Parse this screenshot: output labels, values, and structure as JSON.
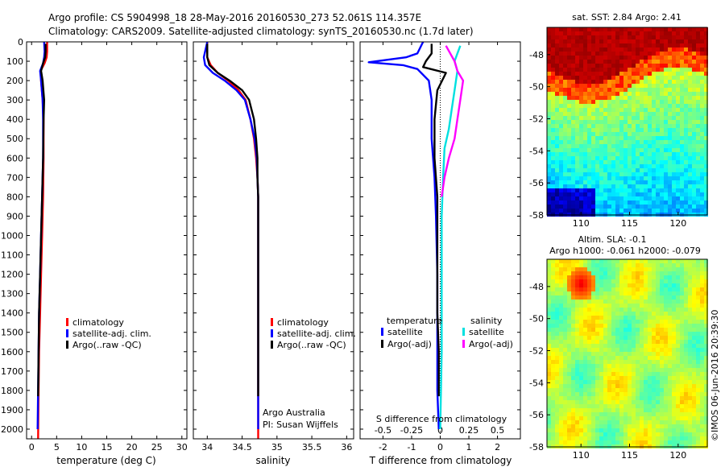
{
  "header": {
    "line1": "Argo profile: CS 5904998_18 28-May-2016 20160530_273 52.061S 114.357E",
    "line2": "Climatology: CARS2009. Satellite-adjusted climatology: synTS_20160530.nc (1.7d later)"
  },
  "credit": "©IMOS 06-Jun-2016 20:39:30",
  "chart_data": [
    {
      "type": "line",
      "id": "temperature",
      "xlabel": "temperature (deg C)",
      "xlim": [
        -1,
        31
      ],
      "xticks": [
        "0",
        "5",
        "10",
        "15",
        "20",
        "25",
        "30"
      ],
      "xtick_values": [
        0,
        5,
        10,
        15,
        20,
        25,
        30
      ],
      "ylim": [
        0,
        2050
      ],
      "yticks": [
        "0",
        "100",
        "200",
        "300",
        "400",
        "500",
        "600",
        "700",
        "800",
        "900",
        "1000",
        "1100",
        "1200",
        "1300",
        "1400",
        "1500",
        "1600",
        "1700",
        "1800",
        "1900",
        "2000"
      ],
      "y_inverted": true,
      "legend": [
        "climatology",
        "satellite-adj. clim.",
        "Argo(..raw -QC)"
      ],
      "legend_colors": [
        "#ff0000",
        "#0000ff",
        "#000000"
      ],
      "series": [
        {
          "name": "climatology",
          "color": "#ff0000",
          "x": [
            3.1,
            3.1,
            3.0,
            2.6,
            1.8,
            1.9,
            2.2,
            2.4,
            2.4,
            2.3,
            2.1,
            1.9,
            1.7,
            1.5,
            1.4,
            1.3
          ],
          "y": [
            0,
            50,
            80,
            110,
            150,
            200,
            300,
            400,
            600,
            800,
            1000,
            1200,
            1400,
            1600,
            1800,
            2050
          ]
        },
        {
          "name": "satellite-adj. clim.",
          "color": "#0000ff",
          "x": [
            2.5,
            2.6,
            2.5,
            2.3,
            1.7,
            1.9,
            2.2,
            2.3,
            2.3,
            2.1,
            1.9,
            1.7,
            1.5,
            1.4,
            1.3,
            1.2
          ],
          "y": [
            0,
            50,
            80,
            110,
            150,
            200,
            300,
            400,
            600,
            800,
            1000,
            1200,
            1400,
            1600,
            1800,
            2000
          ]
        },
        {
          "name": "Argo(..raw -QC)",
          "color": "#000000",
          "x": [
            2.8,
            2.8,
            2.7,
            2.3,
            1.9,
            2.2,
            2.5,
            2.4,
            2.3,
            2.1,
            1.9,
            1.7,
            1.5,
            1.4,
            1.3
          ],
          "y": [
            10,
            50,
            80,
            110,
            150,
            200,
            300,
            400,
            600,
            800,
            1000,
            1200,
            1400,
            1600,
            1830
          ]
        }
      ]
    },
    {
      "type": "line",
      "id": "salinity",
      "xlabel": "salinity",
      "xlim": [
        33.8,
        36.1
      ],
      "xticks": [
        "34",
        "34.5",
        "35",
        "35.5",
        "36"
      ],
      "xtick_values": [
        34,
        34.5,
        35,
        35.5,
        36
      ],
      "ylim": [
        0,
        2050
      ],
      "y_inverted": true,
      "legend": [
        "climatology",
        "satellite-adj. clim.",
        "Argo(..raw -QC)"
      ],
      "legend_colors": [
        "#ff0000",
        "#0000ff",
        "#000000"
      ],
      "annotations": [
        "Argo Australia",
        "PI: Susan Wijffels"
      ],
      "series": [
        {
          "name": "climatology",
          "color": "#ff0000",
          "x": [
            34.0,
            34.0,
            34.05,
            34.15,
            34.3,
            34.45,
            34.55,
            34.62,
            34.67,
            34.7,
            34.72,
            34.73,
            34.73,
            34.73,
            34.73,
            34.73
          ],
          "y": [
            0,
            80,
            120,
            160,
            200,
            250,
            300,
            400,
            500,
            600,
            700,
            800,
            1000,
            1400,
            1800,
            2050
          ]
        },
        {
          "name": "satellite-adj. clim.",
          "color": "#0000ff",
          "x": [
            34.0,
            33.95,
            33.97,
            34.08,
            34.25,
            34.42,
            34.54,
            34.62,
            34.68,
            34.71,
            34.72,
            34.73,
            34.73,
            34.73,
            34.73,
            34.73
          ],
          "y": [
            0,
            80,
            120,
            160,
            200,
            250,
            300,
            400,
            500,
            600,
            700,
            800,
            1000,
            1400,
            1800,
            2000
          ]
        },
        {
          "name": "Argo(..raw -QC)",
          "color": "#000000",
          "x": [
            34.0,
            34.0,
            34.03,
            34.15,
            34.32,
            34.5,
            34.6,
            34.67,
            34.7,
            34.72,
            34.72,
            34.73,
            34.73,
            34.73,
            34.73
          ],
          "y": [
            10,
            80,
            120,
            160,
            200,
            250,
            300,
            400,
            500,
            600,
            700,
            800,
            1000,
            1400,
            1830
          ]
        }
      ]
    },
    {
      "type": "line",
      "id": "difference",
      "xlabel": "T difference from climatology",
      "xlabel_top": "S difference from climatology",
      "xlim": [
        -2.8,
        2.8
      ],
      "xticks": [
        "-2",
        "-1",
        "0",
        "1",
        "2"
      ],
      "xtick_values": [
        -2,
        -1,
        0,
        1,
        2
      ],
      "top_ticks": [
        "-0.5",
        "-0.25",
        "0",
        "0.25",
        "0.5"
      ],
      "top_tick_values": [
        -0.5,
        -0.25,
        0,
        0.25,
        0.5
      ],
      "ylim": [
        0,
        2050
      ],
      "y_inverted": true,
      "legend_groups": [
        {
          "title": "temperature",
          "items": [
            "satellite",
            "Argo(-adj)"
          ],
          "colors": [
            "#0000ff",
            "#000000"
          ]
        },
        {
          "title": "salinity",
          "items": [
            "satellite",
            "Argo(-adj)"
          ],
          "colors": [
            "#00e0e0",
            "#ff00ff"
          ]
        }
      ],
      "series": [
        {
          "name": "temperature satellite",
          "color": "#0000ff",
          "x": [
            -0.6,
            -0.8,
            -1.2,
            -2.5,
            -1.3,
            -0.8,
            -0.4,
            -0.3,
            -0.3,
            -0.2,
            -0.15,
            -0.1,
            -0.1,
            -0.1,
            -0.05
          ],
          "y": [
            0,
            60,
            80,
            105,
            120,
            140,
            200,
            300,
            500,
            700,
            900,
            1200,
            1500,
            1800,
            2000
          ]
        },
        {
          "name": "temperature Argo(-adj)",
          "color": "#000000",
          "x": [
            -0.3,
            -0.3,
            -0.5,
            -0.6,
            0.2,
            -0.1,
            -0.2,
            -0.2,
            -0.1,
            -0.1,
            -0.1,
            -0.1,
            -0.05,
            -0.05
          ],
          "y": [
            10,
            60,
            100,
            130,
            160,
            250,
            400,
            600,
            800,
            1000,
            1200,
            1400,
            1600,
            1830
          ]
        },
        {
          "name": "salinity satellite",
          "color": "#00e0e0",
          "x": [
            0.7,
            0.6,
            0.5,
            0.6,
            0.5,
            0.4,
            0.3,
            0.15,
            0.1,
            0.05,
            0.05,
            0.05,
            0.0
          ],
          "y": [
            20,
            60,
            100,
            150,
            250,
            350,
            450,
            550,
            700,
            900,
            1200,
            1600,
            2000
          ]
        },
        {
          "name": "salinity Argo(-adj)",
          "color": "#ff00ff",
          "x": [
            0.2,
            0.5,
            0.6,
            0.8,
            0.7,
            0.6,
            0.5,
            0.3,
            0.15,
            0.05
          ],
          "y": [
            20,
            100,
            150,
            200,
            300,
            400,
            500,
            600,
            700,
            800
          ]
        }
      ]
    },
    {
      "type": "heatmap",
      "id": "sst",
      "title": "sat. SST: 2.84 Argo: 2.41",
      "xlim": [
        106.5,
        123
      ],
      "ylim": [
        -58,
        -46.3
      ],
      "xticks": [
        "110",
        "115",
        "120"
      ],
      "xtick_values": [
        110,
        115,
        120
      ],
      "yticks": [
        "-48",
        "-50",
        "-52",
        "-54",
        "-56",
        "-58"
      ],
      "ytick_values": [
        -48,
        -50,
        -52,
        -54,
        -56,
        -58
      ]
    },
    {
      "type": "heatmap",
      "id": "sla",
      "title": "Altim. SLA: -0.1",
      "subtitle": "Argo h1000: -0.061 h2000: -0.079",
      "xlim": [
        106.5,
        123
      ],
      "ylim": [
        -58,
        -46.3
      ],
      "xticks": [
        "110",
        "115",
        "120"
      ],
      "xtick_values": [
        110,
        115,
        120
      ],
      "yticks": [
        "-48",
        "-50",
        "-52",
        "-54",
        "-56",
        "-58"
      ],
      "ytick_values": [
        -48,
        -50,
        -52,
        -54,
        -56,
        -58
      ]
    }
  ]
}
